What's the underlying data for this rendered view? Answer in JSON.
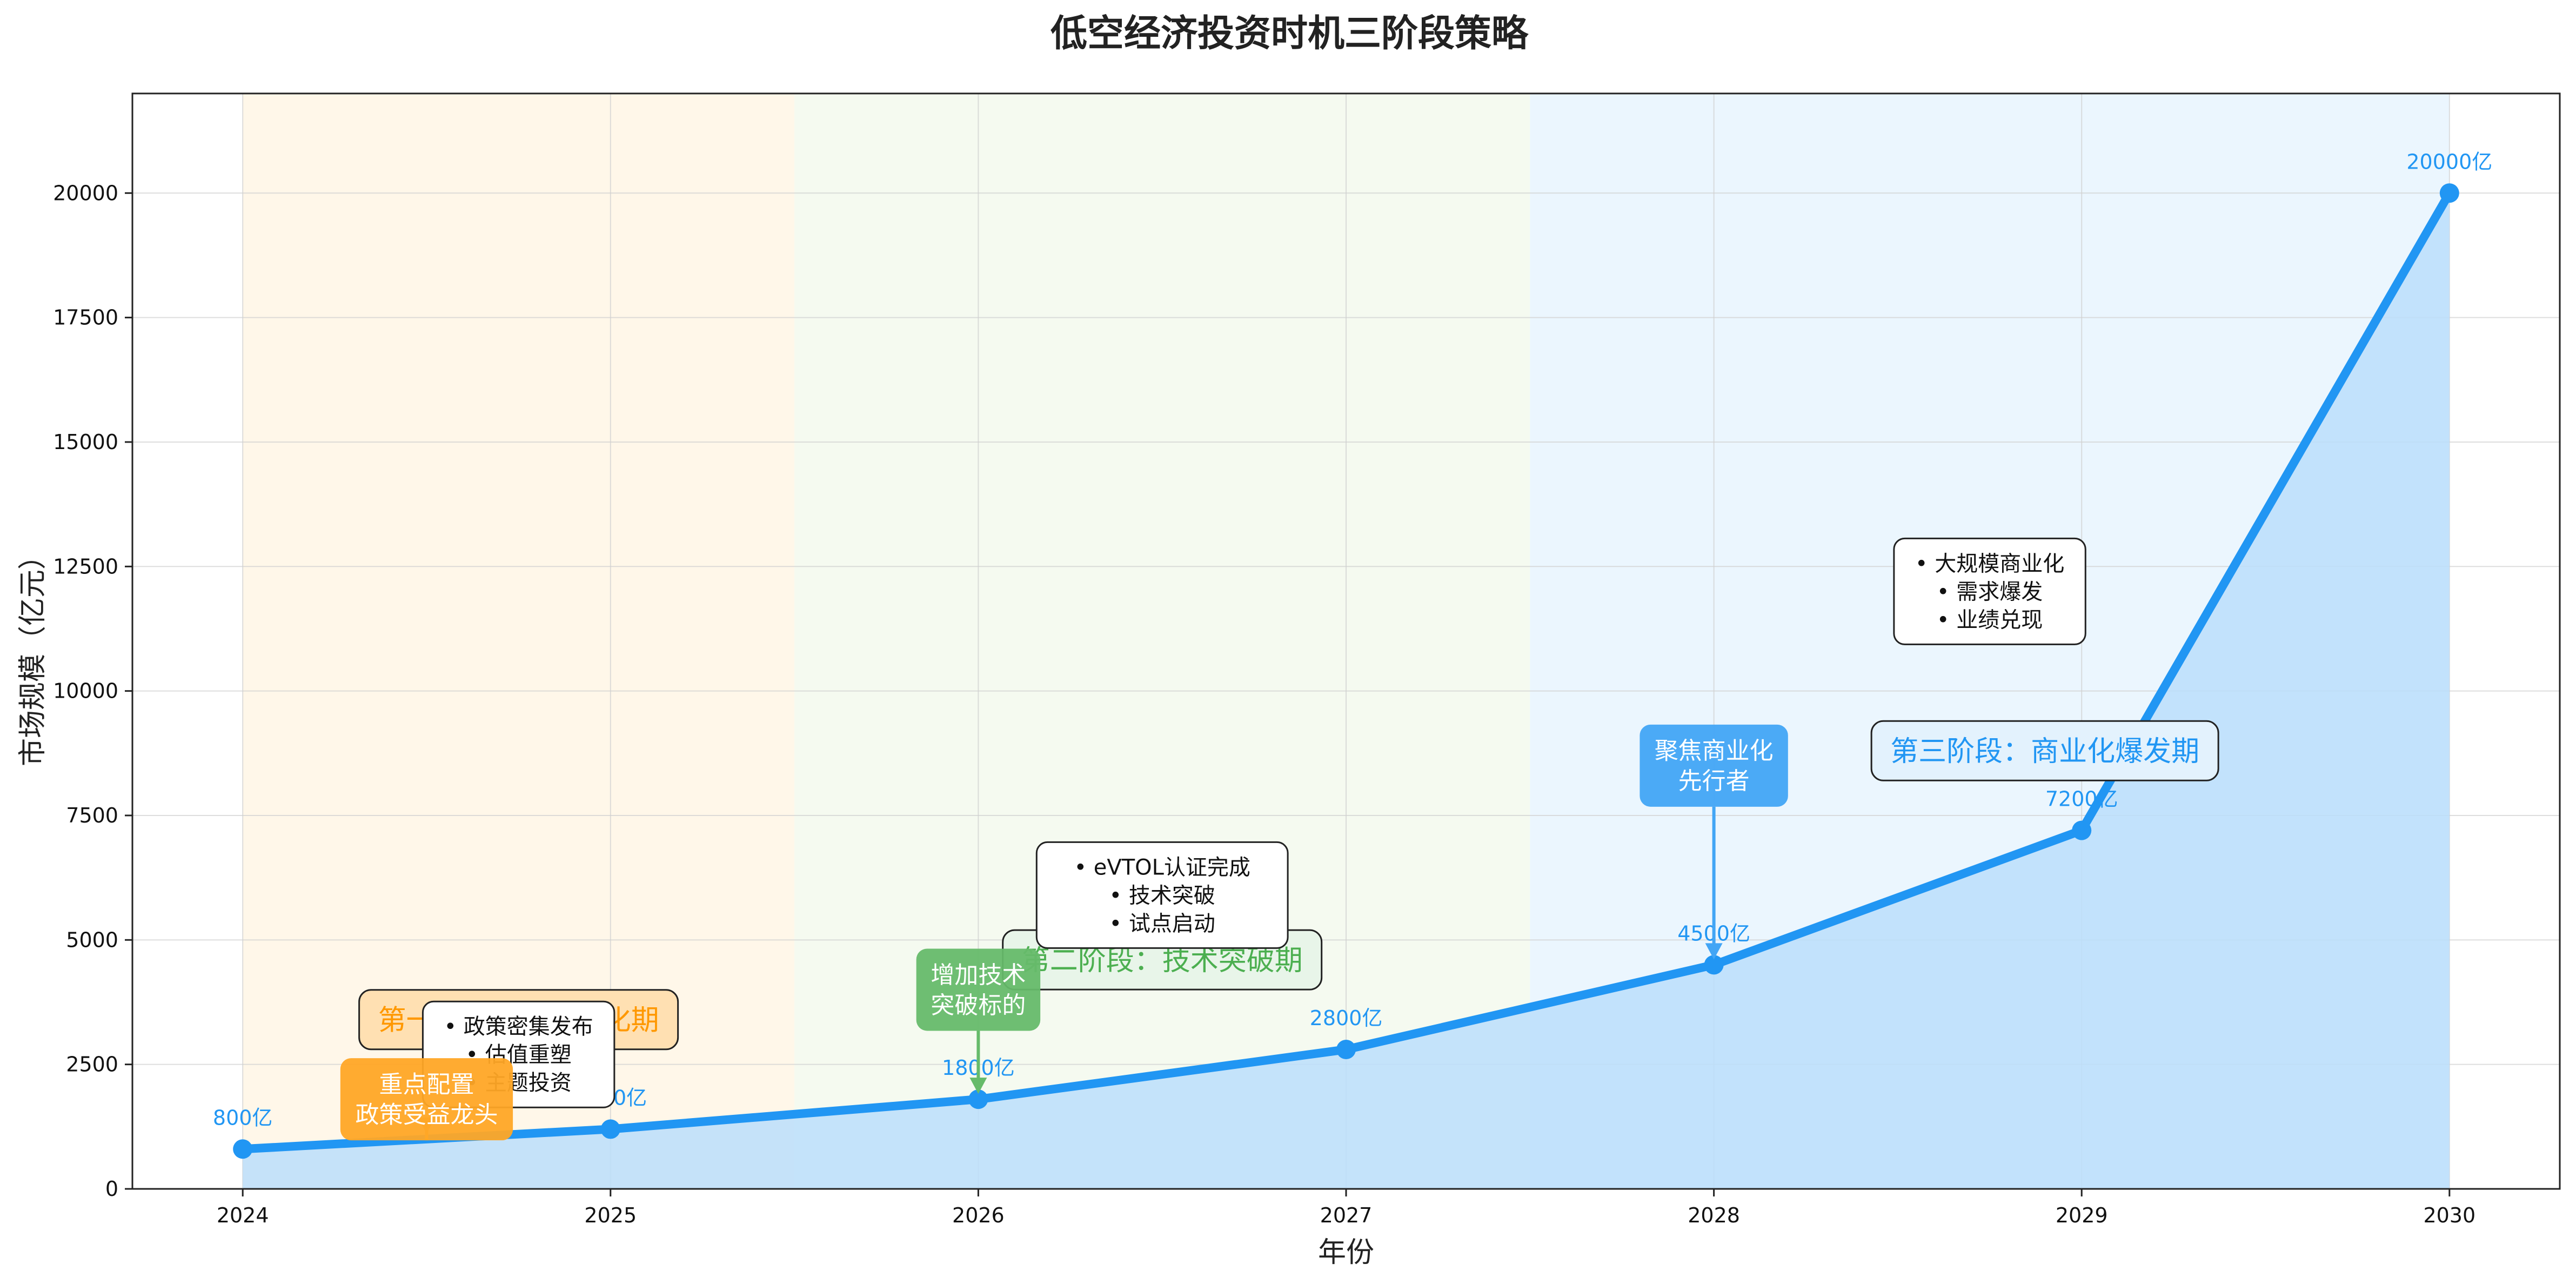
{
  "chart_data": {
    "type": "area",
    "title": "低空经济投资时机三阶段策略",
    "xlabel": "年份",
    "ylabel": "市场规模（亿元）",
    "xlim": [
      2023.7,
      2030.3
    ],
    "ylim": [
      0,
      22000
    ],
    "x_ticks": [
      "2024",
      "2025",
      "2026",
      "2027",
      "2028",
      "2029",
      "2030"
    ],
    "y_ticks": [
      "0",
      "2500",
      "5000",
      "7500",
      "10000",
      "12500",
      "15000",
      "17500",
      "20000"
    ],
    "grid": true,
    "series": [
      {
        "x": [
          2024,
          2025,
          2026,
          2027,
          2028,
          2029,
          2030
        ],
        "values": [
          800,
          1200,
          1800,
          2800,
          4500,
          7200,
          20000
        ],
        "labels": [
          "800亿",
          "1200亿",
          "1800亿",
          "2800亿",
          "4500亿",
          "7200亿",
          "20000亿"
        ],
        "color": "#2196F3",
        "fill": "#BBDEFB"
      }
    ],
    "phases": [
      {
        "start": 2024,
        "end": 2025.5,
        "color": "#FFF3E0",
        "label": "第一阶段：政策催化期",
        "text_color": "#FF9800",
        "box_fill": "#FFE0B2",
        "label_x": 2024.75,
        "label_y": 3400
      },
      {
        "start": 2025.5,
        "end": 2027.5,
        "color": "#F1F8E9",
        "label": "第二阶段：技术突破期",
        "text_color": "#4CAF50",
        "box_fill": "#E8F5E9",
        "label_x": 2026.5,
        "label_y": 4600
      },
      {
        "start": 2027.5,
        "end": 2030,
        "color": "#E3F2FD",
        "label": "第三阶段：商业化爆发期",
        "text_color": "#2196F3",
        "box_fill": "#E3F2FD",
        "label_x": 2028.9,
        "label_y": 8800
      }
    ],
    "phase_notes": [
      {
        "lines": [
          "• 政策密集发布",
          "• 估值重塑",
          "• 主题投资"
        ],
        "x": 2024.75,
        "y": 2700
      },
      {
        "lines": [
          "• eVTOL认证完成",
          "• 技术突破",
          "• 试点启动"
        ],
        "x": 2026.5,
        "y": 5900
      },
      {
        "lines": [
          "• 大规模商业化",
          "• 需求爆发",
          "• 业绩兑现"
        ],
        "x": 2028.75,
        "y": 12000
      }
    ],
    "callouts": [
      {
        "lines": [
          "重点配置",
          "政策受益龙头"
        ],
        "color": "#FFA726",
        "x": 2024.5,
        "y": 1800,
        "arrow_to_y": 1000
      },
      {
        "lines": [
          "增加技术",
          "突破标的"
        ],
        "color": "#66BB6A",
        "x": 2026.0,
        "y": 4000,
        "arrow_to_y": 1800
      },
      {
        "lines": [
          "聚焦商业化",
          "先行者"
        ],
        "color": "#42A5F5",
        "x": 2028.0,
        "y": 8500,
        "arrow_to_y": 4500
      }
    ]
  }
}
